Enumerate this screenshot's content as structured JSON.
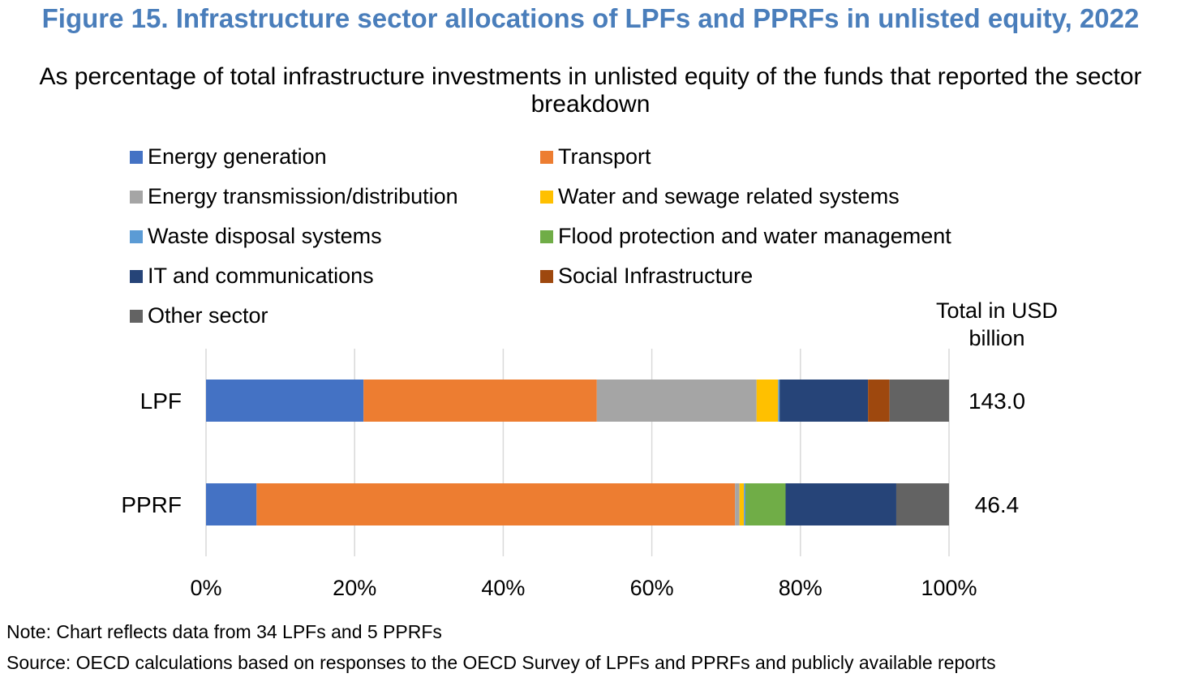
{
  "header": {
    "title": "Figure 15. Infrastructure sector allocations of LPFs and PPRFs in unlisted equity, 2022",
    "subtitle": "As percentage of total infrastructure investments in unlisted equity of the funds that reported the sector breakdown"
  },
  "chart_data": {
    "type": "bar",
    "orientation": "horizontal",
    "stacked": "percent",
    "categories": [
      "LPF",
      "PPRF"
    ],
    "series": [
      {
        "name": "Energy generation",
        "color": "#4472c4",
        "values": [
          21.2,
          6.8
        ]
      },
      {
        "name": "Transport",
        "color": "#ed7d31",
        "values": [
          31.4,
          64.4
        ]
      },
      {
        "name": "Energy transmission/distribution",
        "color": "#a5a5a5",
        "values": [
          21.5,
          0.6
        ]
      },
      {
        "name": "Water and sewage related systems",
        "color": "#ffc000",
        "values": [
          2.9,
          0.6
        ]
      },
      {
        "name": "Waste disposal systems",
        "color": "#5b9bd5",
        "values": [
          0.2,
          0.2
        ]
      },
      {
        "name": "Flood protection and water management",
        "color": "#70ad47",
        "values": [
          0.0,
          5.4
        ]
      },
      {
        "name": "IT and communications",
        "color": "#264478",
        "values": [
          11.9,
          14.9
        ]
      },
      {
        "name": "Social Infrastructure",
        "color": "#9e480e",
        "values": [
          2.9,
          0.0
        ]
      },
      {
        "name": "Other sector",
        "color": "#636363",
        "values": [
          8.0,
          7.1
        ]
      }
    ],
    "xaxis": {
      "ticks": [
        "0%",
        "20%",
        "40%",
        "60%",
        "80%",
        "100%"
      ],
      "range": [
        0,
        100
      ]
    },
    "grid": true,
    "legend_position": "top",
    "totals": {
      "header": "Total in USD billion",
      "values": [
        "143.0",
        "46.4"
      ]
    }
  },
  "footer": {
    "note": "Note: Chart reflects data from 34 LPFs and 5 PPRFs",
    "source": "Source: OECD calculations based on responses to the OECD Survey of LPFs and PPRFs and publicly available reports"
  }
}
